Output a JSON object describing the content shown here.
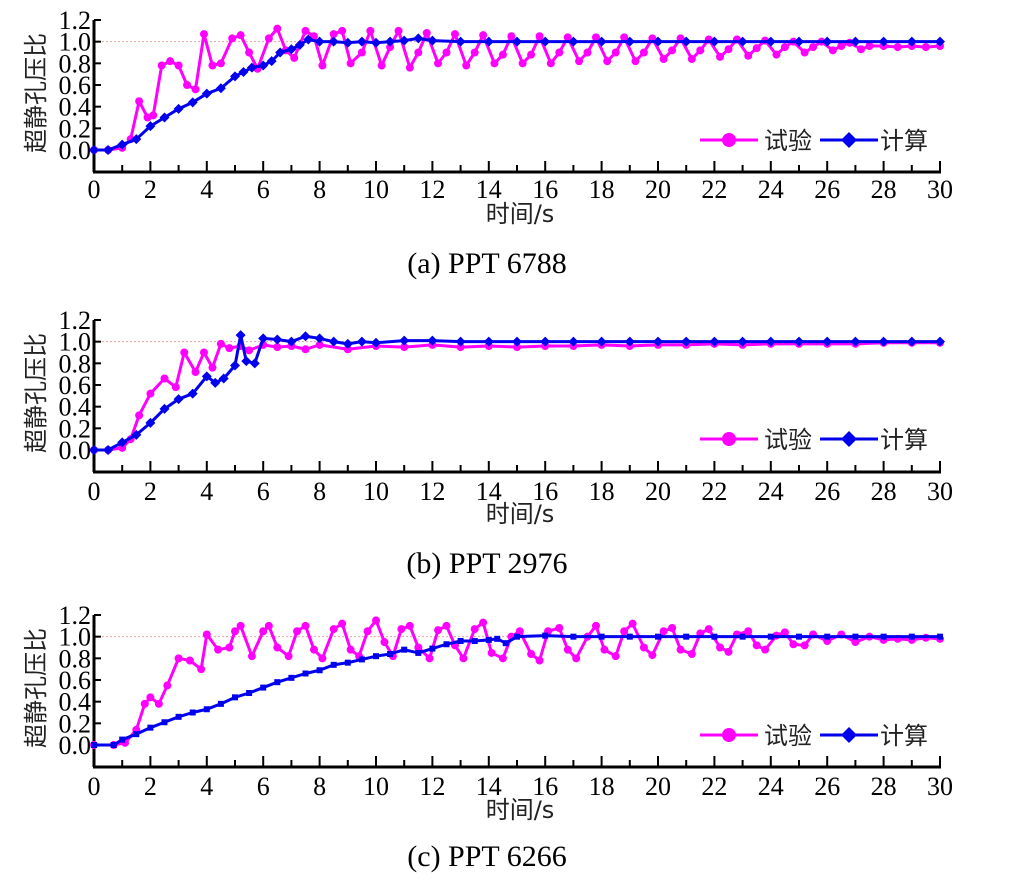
{
  "chart_data": [
    {
      "type": "line",
      "title": "(a) PPT 6788",
      "xlabel": "时间/s",
      "ylabel": "超静孔压比",
      "xlim": [
        0,
        30
      ],
      "ylim": [
        -0.1,
        1.2
      ],
      "xticks": [
        "0",
        "2",
        "4",
        "6",
        "8",
        "10",
        "12",
        "14",
        "16",
        "18",
        "20",
        "22",
        "24",
        "26",
        "28",
        "30"
      ],
      "yticks": [
        "0.0",
        "0.2",
        "0.4",
        "0.6",
        "0.8",
        "1.0",
        "1.2"
      ],
      "reference_line": 1.0,
      "legend": "bottom-right",
      "series": [
        {
          "name": "试验",
          "color": "#ff00ff",
          "marker": "circle",
          "x": [
            0,
            0.5,
            1,
            1.3,
            1.6,
            1.9,
            2.1,
            2.4,
            2.7,
            3.0,
            3.3,
            3.6,
            3.9,
            4.2,
            4.5,
            4.9,
            5.2,
            5.5,
            5.8,
            6.2,
            6.5,
            6.8,
            7.1,
            7.5,
            7.8,
            8.1,
            8.5,
            8.8,
            9.1,
            9.5,
            9.8,
            10.2,
            10.5,
            10.8,
            11.2,
            11.5,
            11.8,
            12.2,
            12.5,
            12.8,
            13.2,
            13.5,
            13.8,
            14.2,
            14.5,
            14.8,
            15.2,
            15.5,
            15.8,
            16.2,
            16.5,
            16.8,
            17.2,
            17.5,
            17.8,
            18.2,
            18.5,
            18.8,
            19.2,
            19.5,
            19.8,
            20.2,
            20.5,
            20.8,
            21.2,
            21.5,
            21.8,
            22.2,
            22.5,
            22.8,
            23.2,
            23.5,
            23.8,
            24.2,
            24.5,
            24.8,
            25.2,
            25.5,
            25.8,
            26.2,
            26.5,
            26.8,
            27.2,
            27.5,
            28,
            28.5,
            29,
            29.5,
            30
          ],
          "y": [
            0,
            0,
            0.02,
            0.1,
            0.45,
            0.3,
            0.32,
            0.78,
            0.82,
            0.78,
            0.6,
            0.56,
            1.07,
            0.78,
            0.8,
            1.03,
            1.06,
            0.9,
            0.75,
            1.03,
            1.12,
            0.92,
            0.85,
            1.1,
            1.05,
            0.78,
            1.07,
            1.1,
            0.8,
            0.9,
            1.1,
            0.78,
            0.95,
            1.1,
            0.76,
            0.9,
            1.08,
            0.8,
            0.9,
            1.07,
            0.78,
            0.9,
            1.06,
            0.8,
            0.88,
            1.05,
            0.8,
            0.88,
            1.05,
            0.8,
            0.9,
            1.04,
            0.82,
            0.9,
            1.04,
            0.82,
            0.9,
            1.04,
            0.82,
            0.9,
            1.03,
            0.84,
            0.92,
            1.03,
            0.84,
            0.92,
            1.02,
            0.86,
            0.93,
            1.02,
            0.87,
            0.94,
            1.01,
            0.88,
            0.95,
            1.0,
            0.9,
            0.95,
            1.0,
            0.92,
            0.96,
            0.99,
            0.93,
            0.96,
            0.96,
            0.95,
            0.96,
            0.95,
            0.96
          ]
        },
        {
          "name": "计算",
          "color": "#0000ee",
          "marker": "diamond",
          "x": [
            0,
            0.5,
            1,
            1.5,
            2,
            2.5,
            3,
            3.5,
            4,
            4.5,
            5,
            5.3,
            5.6,
            6,
            6.3,
            6.6,
            7,
            7.3,
            7.6,
            8,
            8.5,
            9,
            9.5,
            10,
            10.5,
            11,
            11.5,
            12,
            13,
            14,
            15,
            16,
            17,
            18,
            19,
            20,
            21,
            22,
            23,
            24,
            25,
            26,
            27,
            28,
            29,
            30
          ],
          "y": [
            0,
            0,
            0.05,
            0.1,
            0.22,
            0.3,
            0.38,
            0.44,
            0.52,
            0.57,
            0.68,
            0.72,
            0.76,
            0.78,
            0.82,
            0.9,
            0.93,
            0.97,
            1.02,
            1.0,
            1.0,
            0.99,
            1.0,
            0.99,
            1.0,
            1.01,
            1.03,
            1.01,
            1.0,
            1.0,
            1.0,
            1.0,
            1.0,
            1.0,
            1.0,
            1.0,
            1.0,
            1.0,
            1.0,
            1.0,
            1.0,
            1.0,
            1.0,
            1.0,
            1.0,
            1.0
          ]
        }
      ]
    },
    {
      "type": "line",
      "title": "(b) PPT 2976",
      "xlabel": "时间/s",
      "ylabel": "超静孔压比",
      "xlim": [
        0,
        30
      ],
      "ylim": [
        -0.1,
        1.2
      ],
      "xticks": [
        "0",
        "2",
        "4",
        "6",
        "8",
        "10",
        "12",
        "14",
        "16",
        "18",
        "20",
        "22",
        "24",
        "26",
        "28",
        "30"
      ],
      "yticks": [
        "0.0",
        "0.2",
        "0.4",
        "0.6",
        "0.8",
        "1.0",
        "1.2"
      ],
      "reference_line": 1.0,
      "legend": "bottom-right",
      "series": [
        {
          "name": "试验",
          "color": "#ff00ff",
          "marker": "circle",
          "x": [
            0,
            0.5,
            1,
            1.3,
            1.6,
            2,
            2.5,
            2.9,
            3.2,
            3.6,
            3.9,
            4.2,
            4.5,
            4.8,
            5.2,
            5.5,
            6,
            6.5,
            7,
            7.5,
            8,
            9,
            10,
            11,
            12,
            13,
            14,
            15,
            16,
            17,
            18,
            19,
            20,
            21,
            22,
            23,
            24,
            25,
            26,
            27,
            28,
            29,
            30
          ],
          "y": [
            0,
            0,
            0.02,
            0.1,
            0.32,
            0.52,
            0.66,
            0.58,
            0.9,
            0.72,
            0.9,
            0.76,
            0.98,
            0.94,
            0.96,
            0.92,
            0.97,
            0.95,
            0.96,
            0.93,
            0.97,
            0.93,
            0.96,
            0.95,
            0.97,
            0.95,
            0.96,
            0.95,
            0.96,
            0.96,
            0.97,
            0.96,
            0.97,
            0.97,
            0.98,
            0.97,
            0.98,
            0.98,
            0.98,
            0.98,
            0.99,
            0.99,
            0.99
          ]
        },
        {
          "name": "计算",
          "color": "#0000ee",
          "marker": "diamond",
          "x": [
            0,
            0.5,
            1,
            1.5,
            2,
            2.5,
            3,
            3.5,
            4,
            4.3,
            4.6,
            5,
            5.2,
            5.4,
            5.7,
            6,
            6.5,
            7,
            7.5,
            8,
            8.5,
            9,
            9.5,
            10,
            11,
            12,
            13,
            14,
            15,
            16,
            17,
            18,
            19,
            20,
            21,
            22,
            23,
            24,
            25,
            26,
            27,
            28,
            29,
            30
          ],
          "y": [
            0,
            0,
            0.07,
            0.14,
            0.25,
            0.38,
            0.47,
            0.52,
            0.68,
            0.62,
            0.66,
            0.78,
            1.06,
            0.82,
            0.8,
            1.03,
            1.02,
            1.0,
            1.05,
            1.03,
            1.0,
            0.98,
            1.0,
            0.99,
            1.01,
            1.01,
            1.0,
            1.0,
            1.0,
            1.0,
            1.0,
            1.0,
            1.0,
            1.0,
            1.0,
            1.0,
            1.0,
            1.0,
            1.0,
            1.0,
            1.0,
            1.0,
            1.0,
            1.0
          ]
        }
      ]
    },
    {
      "type": "line",
      "title": "(c) PPT 6266",
      "xlabel": "时间/s",
      "ylabel": "超静孔压比",
      "xlim": [
        0,
        30
      ],
      "ylim": [
        -0.1,
        1.2
      ],
      "xticks": [
        "0",
        "2",
        "4",
        "6",
        "8",
        "10",
        "12",
        "14",
        "16",
        "18",
        "20",
        "22",
        "24",
        "26",
        "28",
        "30"
      ],
      "yticks": [
        "0.0",
        "0.2",
        "0.4",
        "0.6",
        "0.8",
        "1.0",
        "1.2"
      ],
      "reference_line": 1.0,
      "legend": "bottom-right",
      "series": [
        {
          "name": "试验",
          "color": "#ff00ff",
          "marker": "circle",
          "x": [
            0,
            0.7,
            1.1,
            1.5,
            1.8,
            2,
            2.3,
            2.6,
            3,
            3.4,
            3.8,
            4,
            4.4,
            4.8,
            5,
            5.2,
            5.6,
            6,
            6.2,
            6.5,
            6.9,
            7.2,
            7.5,
            7.8,
            8.1,
            8.5,
            8.8,
            9.1,
            9.4,
            9.7,
            10,
            10.3,
            10.6,
            10.9,
            11.2,
            11.5,
            11.9,
            12.2,
            12.5,
            12.8,
            13.1,
            13.5,
            13.8,
            14.1,
            14.5,
            14.8,
            15.1,
            15.5,
            15.8,
            16.1,
            16.5,
            16.8,
            17.1,
            17.5,
            17.8,
            18.1,
            18.5,
            18.8,
            19.1,
            19.5,
            19.8,
            20.2,
            20.5,
            20.8,
            21.2,
            21.5,
            21.8,
            22.2,
            22.5,
            22.8,
            23.2,
            23.5,
            23.8,
            24.2,
            24.5,
            24.8,
            25.2,
            25.5,
            26,
            26.5,
            27,
            27.5,
            28,
            28.5,
            29,
            29.5,
            30
          ],
          "y": [
            0,
            0,
            0.02,
            0.14,
            0.38,
            0.44,
            0.38,
            0.55,
            0.8,
            0.78,
            0.7,
            1.02,
            0.88,
            0.9,
            1.05,
            1.1,
            0.82,
            1.05,
            1.1,
            0.9,
            0.82,
            1.05,
            1.1,
            0.88,
            0.8,
            1.07,
            1.12,
            0.88,
            0.82,
            1.05,
            1.15,
            0.95,
            0.82,
            1.07,
            1.1,
            0.9,
            0.8,
            1.06,
            1.1,
            0.92,
            0.8,
            1.07,
            1.13,
            0.85,
            0.8,
            1.0,
            1.05,
            0.84,
            0.78,
            1.05,
            1.08,
            0.88,
            0.8,
            1.0,
            1.1,
            0.88,
            0.82,
            1.05,
            1.12,
            0.9,
            0.83,
            1.05,
            1.08,
            0.88,
            0.84,
            1.03,
            1.07,
            0.9,
            0.86,
            1.02,
            1.05,
            0.92,
            0.88,
            1.01,
            1.04,
            0.93,
            0.92,
            1.02,
            0.96,
            1.02,
            0.95,
            1.0,
            0.97,
            0.98,
            0.97,
            0.99,
            0.98
          ]
        },
        {
          "name": "计算",
          "color": "#0000ee",
          "marker": "square",
          "x": [
            0,
            0.7,
            1,
            1.5,
            2,
            2.5,
            3,
            3.5,
            4,
            4.5,
            5,
            5.5,
            6,
            6.5,
            7,
            7.5,
            8,
            8.5,
            9,
            9.5,
            10,
            10.5,
            11,
            11.5,
            12,
            12.5,
            13,
            13.5,
            14,
            14.3,
            14.6,
            15,
            16,
            17,
            18,
            19,
            20,
            21,
            22,
            23,
            24,
            25,
            26,
            27,
            28,
            29,
            30
          ],
          "y": [
            0,
            0,
            0.05,
            0.1,
            0.16,
            0.21,
            0.26,
            0.3,
            0.33,
            0.38,
            0.44,
            0.48,
            0.53,
            0.58,
            0.62,
            0.66,
            0.69,
            0.74,
            0.76,
            0.79,
            0.82,
            0.84,
            0.88,
            0.85,
            0.89,
            0.93,
            0.96,
            0.96,
            0.97,
            0.98,
            0.94,
            1.0,
            1.01,
            1.0,
            1.0,
            1.0,
            1.0,
            1.0,
            1.0,
            1.0,
            1.0,
            1.0,
            1.0,
            1.0,
            1.0,
            1.0,
            1.0
          ]
        }
      ]
    }
  ]
}
